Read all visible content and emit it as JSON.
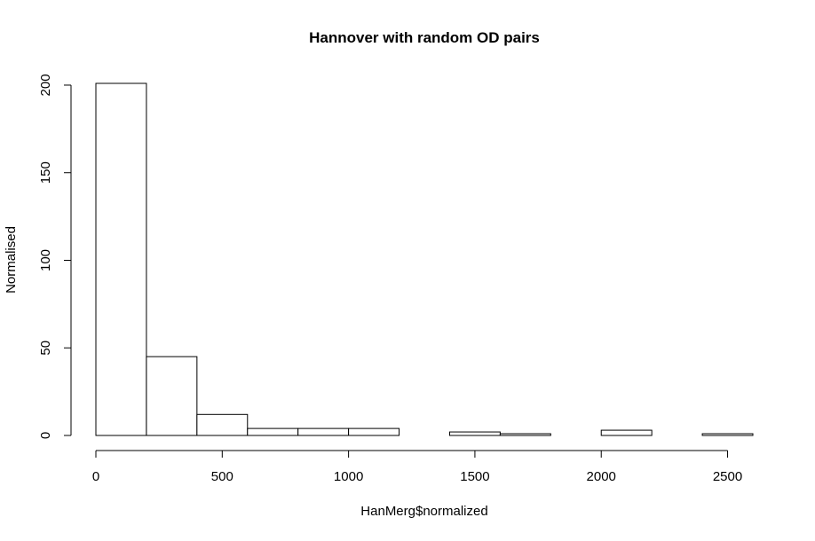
{
  "chart_data": {
    "type": "bar",
    "subtype": "histogram",
    "title": "Hannover with random OD pairs",
    "xlabel": "HanMerg$normalized",
    "ylabel": "Normalised",
    "bin_edges": [
      0,
      200,
      400,
      600,
      800,
      1000,
      1200,
      1400,
      1600,
      1800,
      2000,
      2200,
      2400,
      2600
    ],
    "values": [
      201,
      45,
      12,
      4,
      4,
      4,
      0,
      2,
      1,
      0,
      3,
      0,
      1
    ],
    "xlim": [
      0,
      2600
    ],
    "ylim": [
      0,
      201
    ],
    "x_ticks": [
      0,
      500,
      1000,
      1500,
      2000,
      2500
    ],
    "x_tick_labels": [
      "0",
      "500",
      "1000",
      "1500",
      "2000",
      "2500"
    ],
    "y_ticks": [
      0,
      50,
      100,
      150,
      200
    ],
    "y_tick_labels": [
      "0",
      "50",
      "100",
      "150",
      "200"
    ],
    "grid": false,
    "legend": "none",
    "bar_fill": "#ffffff",
    "bar_stroke": "#000000"
  }
}
